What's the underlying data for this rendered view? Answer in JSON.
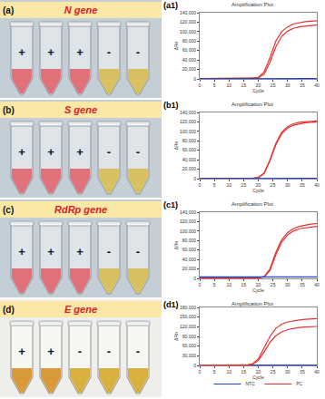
{
  "photos": [
    {
      "label": "(a)",
      "gene": "N gene",
      "signs": [
        "+",
        "+",
        "+",
        "-",
        "-"
      ],
      "colors": [
        "#e0707a",
        "#e0707a",
        "#e0707a",
        "#d8c060",
        "#d8c060"
      ]
    },
    {
      "label": "(b)",
      "gene": "S gene",
      "signs": [
        "+",
        "+",
        "+",
        "-",
        "-"
      ],
      "colors": [
        "#e0707a",
        "#e0707a",
        "#e0707a",
        "#d8c060",
        "#d8c060"
      ]
    },
    {
      "label": "(c)",
      "gene": "RdRp gene",
      "signs": [
        "+",
        "+",
        "+",
        "-",
        "-"
      ],
      "colors": [
        "#e0707a",
        "#e0707a",
        "#e0707a",
        "#d8c060",
        "#d8c060"
      ]
    },
    {
      "label": "(d)",
      "gene": "E gene",
      "signs": [
        "+",
        "+",
        "-",
        "-",
        "-"
      ],
      "colors": [
        "#d99a3a",
        "#d99a3a",
        "#d8b040",
        "#d8b040",
        "#d8b040"
      ]
    }
  ],
  "chart_data": [
    {
      "type": "line",
      "label": "(a1)",
      "title": "Amplification Plot",
      "x_label": "Cycle",
      "y_label": "ΔRn",
      "grid": false,
      "x": [
        0,
        2,
        4,
        6,
        8,
        10,
        12,
        14,
        16,
        18,
        20,
        22,
        24,
        26,
        28,
        30,
        32,
        34,
        36,
        38,
        40
      ],
      "xlim": [
        0,
        40
      ],
      "xticks": [
        0,
        5,
        10,
        15,
        20,
        25,
        30,
        35,
        40
      ],
      "ylim": [
        0,
        140000
      ],
      "yticks": [
        0,
        {
          "value": 20000,
          "label": "20,000"
        },
        {
          "value": 40000,
          "label": "40,000"
        },
        {
          "value": 60000,
          "label": "60,000"
        },
        {
          "value": 80000,
          "label": "80,000"
        },
        {
          "value": 100000,
          "label": "100,000"
        },
        {
          "value": 120000,
          "label": "120,000"
        },
        {
          "value": 140000,
          "label": "140,000"
        }
      ],
      "series": [
        {
          "color": "#e8312f",
          "values": [
            1000,
            1000,
            1000,
            1000,
            1000,
            1000,
            1000,
            1000,
            1000,
            1200,
            3000,
            15000,
            45000,
            80000,
            100000,
            110000,
            116000,
            119000,
            121000,
            122000,
            123000
          ]
        },
        {
          "color": "#e8312f",
          "values": [
            900,
            900,
            900,
            900,
            900,
            900,
            900,
            900,
            900,
            1000,
            2000,
            10000,
            35000,
            68000,
            90000,
            101000,
            107000,
            110000,
            112000,
            113000,
            114000
          ]
        },
        {
          "color": "#1f3fd6",
          "values": [
            300,
            300,
            300,
            300,
            300,
            300,
            300,
            300,
            300,
            300,
            300,
            400,
            400,
            500,
            500,
            500,
            600,
            600,
            600,
            700,
            700
          ]
        }
      ]
    },
    {
      "type": "line",
      "label": "(b1)",
      "title": "Amplification Plot",
      "x_label": "Cycle",
      "y_label": "ΔRn",
      "grid": false,
      "x": [
        0,
        2,
        4,
        6,
        8,
        10,
        12,
        14,
        16,
        18,
        20,
        22,
        24,
        26,
        28,
        30,
        32,
        34,
        36,
        38,
        40
      ],
      "xlim": [
        0,
        40
      ],
      "xticks": [
        0,
        5,
        10,
        15,
        20,
        25,
        30,
        35,
        40
      ],
      "ylim": [
        0,
        140000
      ],
      "yticks": [
        0,
        {
          "value": 20000,
          "label": "20,000"
        },
        {
          "value": 40000,
          "label": "40,000"
        },
        {
          "value": 60000,
          "label": "60,000"
        },
        {
          "value": 80000,
          "label": "80,000"
        },
        {
          "value": 100000,
          "label": "100,000"
        },
        {
          "value": 120000,
          "label": "120,000"
        },
        {
          "value": 140000,
          "label": "140,000"
        }
      ],
      "series": [
        {
          "color": "#e8312f",
          "values": [
            800,
            800,
            800,
            800,
            800,
            800,
            800,
            800,
            800,
            1000,
            2500,
            12000,
            40000,
            75000,
            98000,
            110000,
            116000,
            119000,
            120000,
            121000,
            122000
          ]
        },
        {
          "color": "#e8312f",
          "values": [
            700,
            700,
            700,
            700,
            700,
            700,
            700,
            700,
            700,
            900,
            2200,
            11000,
            38000,
            72000,
            95000,
            107000,
            113000,
            116000,
            118000,
            119000,
            120000
          ]
        },
        {
          "color": "#1f3fd6",
          "values": [
            300,
            300,
            300,
            300,
            300,
            300,
            300,
            300,
            300,
            300,
            300,
            300,
            400,
            400,
            400,
            500,
            500,
            500,
            500,
            600,
            600
          ]
        }
      ]
    },
    {
      "type": "line",
      "label": "(c1)",
      "title": "Amplification Plot",
      "x_label": "Cycle",
      "y_label": "ΔRn",
      "grid": false,
      "x": [
        0,
        2,
        4,
        6,
        8,
        10,
        12,
        14,
        16,
        18,
        20,
        22,
        24,
        26,
        28,
        30,
        32,
        34,
        36,
        38,
        40
      ],
      "xlim": [
        0,
        40
      ],
      "xticks": [
        0,
        5,
        10,
        15,
        20,
        25,
        30,
        35,
        40
      ],
      "ylim": [
        0,
        140000
      ],
      "yticks": [
        0,
        {
          "value": 20000,
          "label": "20,000"
        },
        {
          "value": 40000,
          "label": "40,000"
        },
        {
          "value": 60000,
          "label": "60,000"
        },
        {
          "value": 80000,
          "label": "80,000"
        },
        {
          "value": 100000,
          "label": "100,000"
        },
        {
          "value": 120000,
          "label": "120,000"
        },
        {
          "value": 140000,
          "label": "140,000"
        }
      ],
      "series": [
        {
          "color": "#e8312f",
          "values": [
            900,
            900,
            900,
            900,
            900,
            900,
            900,
            900,
            900,
            900,
            1200,
            4000,
            20000,
            55000,
            82000,
            97000,
            105000,
            110000,
            113000,
            115000,
            116000
          ]
        },
        {
          "color": "#e8312f",
          "values": [
            800,
            800,
            800,
            800,
            800,
            800,
            800,
            800,
            800,
            800,
            1000,
            3000,
            17000,
            50000,
            77000,
            92000,
            100000,
            105000,
            107000,
            109000,
            110000
          ]
        },
        {
          "color": "#1f3fd6",
          "values": [
            3000,
            3000,
            3000,
            3000,
            3000,
            3000,
            3000,
            3000,
            3000,
            3000,
            3000,
            3000,
            3000,
            3000,
            3000,
            3000,
            3000,
            3000,
            3000,
            3000,
            3000
          ]
        }
      ]
    },
    {
      "type": "line",
      "label": "(d1)",
      "title": "Amplification Plot",
      "x_label": "Cycle",
      "y_label": "ΔRn",
      "grid": false,
      "legend": "bottom",
      "x": [
        0,
        2,
        4,
        6,
        8,
        10,
        12,
        14,
        16,
        18,
        20,
        22,
        24,
        26,
        28,
        30,
        32,
        34,
        36,
        38,
        40
      ],
      "xlim": [
        0,
        40
      ],
      "xticks": [
        0,
        5,
        10,
        15,
        20,
        25,
        30,
        35,
        40
      ],
      "ylim": [
        0,
        180000
      ],
      "yticks": [
        0,
        {
          "value": 30000,
          "label": "30,000"
        },
        {
          "value": 60000,
          "label": "60,000"
        },
        {
          "value": 90000,
          "label": "90,000"
        },
        {
          "value": 120000,
          "label": "120,000"
        },
        {
          "value": 150000,
          "label": "150,000"
        },
        {
          "value": 180000,
          "label": "180,000"
        }
      ],
      "series": [
        {
          "name": "NTC",
          "color": "#1f3fd6",
          "values": [
            1000,
            1000,
            1000,
            1000,
            1000,
            1000,
            1000,
            1000,
            1000,
            1000,
            1000,
            1000,
            1000,
            1000,
            1000,
            1000,
            1000,
            1000,
            1000,
            1000,
            1000
          ]
        },
        {
          "name": "PC",
          "color": "#e8312f",
          "values": [
            800,
            800,
            800,
            800,
            800,
            800,
            800,
            800,
            1500,
            5000,
            20000,
            55000,
            90000,
            115000,
            128000,
            135000,
            139000,
            141000,
            143000,
            144000,
            145000
          ]
        },
        {
          "name": "PC",
          "color": "#e8312f",
          "values": [
            700,
            700,
            700,
            700,
            700,
            700,
            700,
            700,
            1000,
            3500,
            15000,
            42000,
            72000,
            92000,
            104000,
            111000,
            115000,
            118000,
            119000,
            120000,
            121000
          ]
        }
      ]
    }
  ]
}
